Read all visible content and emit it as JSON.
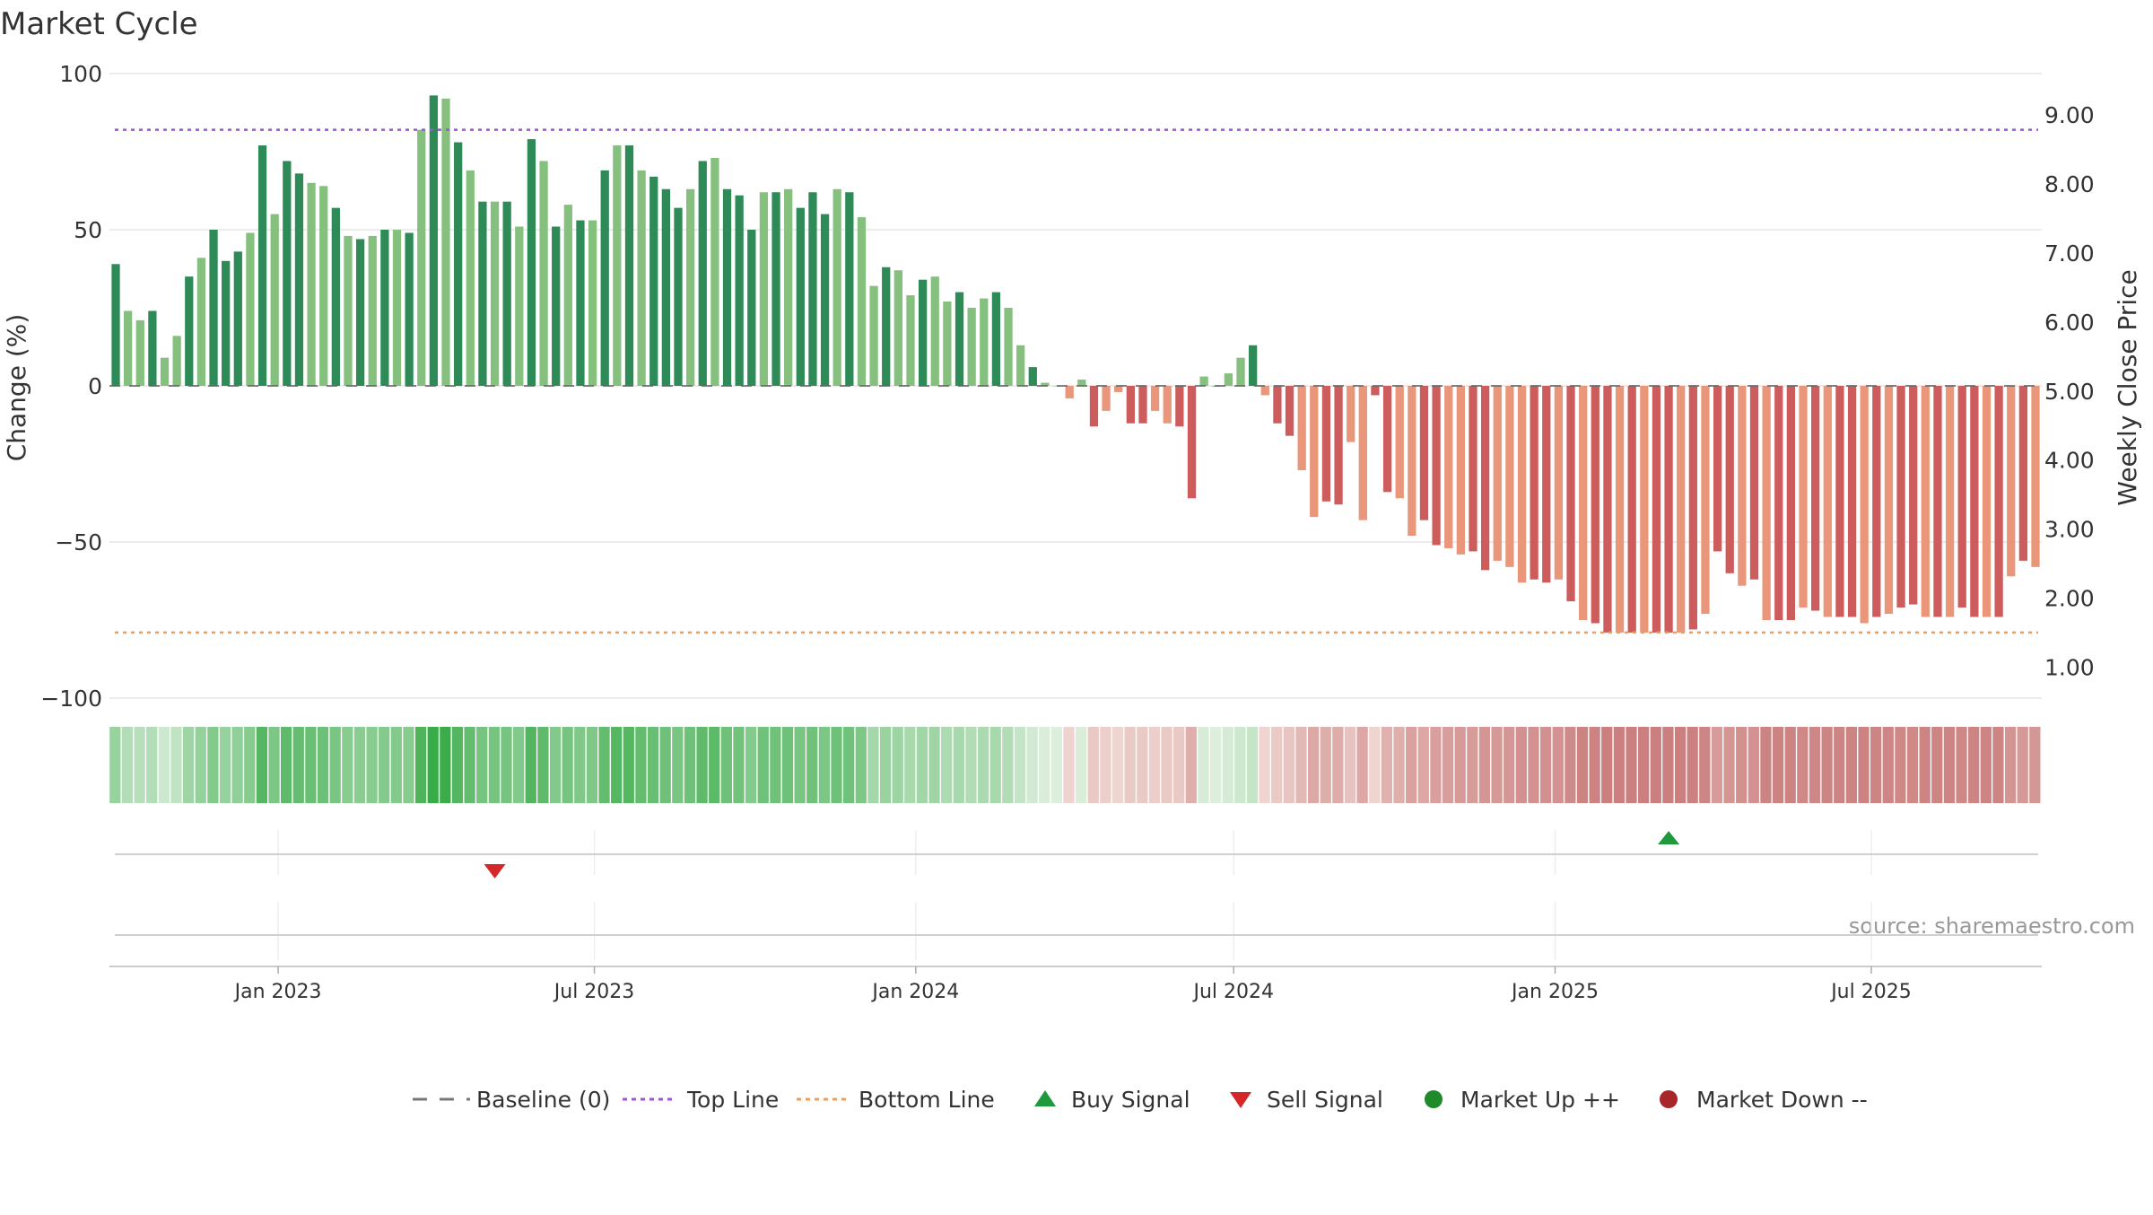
{
  "chart_data": {
    "type": "bar",
    "title": "Market Cycle",
    "ylabel_left": "Change (%)",
    "ylabel_right": "Weekly Close Price",
    "ylim": [
      -100,
      100
    ],
    "y_ticks": [
      100,
      50,
      0,
      -50,
      -100
    ],
    "y_tick_labels": [
      "100",
      "50",
      "0",
      "−50",
      "−100"
    ],
    "y2lim": [
      0.55,
      9.6
    ],
    "y2_ticks": [
      9,
      8,
      7,
      6,
      5,
      4,
      3,
      2,
      1
    ],
    "y2_tick_labels": [
      "9.00",
      "8.00",
      "7.00",
      "6.00",
      "5.00",
      "4.00",
      "3.00",
      "2.00",
      "1.00"
    ],
    "start_date": "2022-09-30",
    "interval_days": 7,
    "x_ticks": [
      {
        "date": "2023-01-01",
        "label": "Jan 2023"
      },
      {
        "date": "2023-07-01",
        "label": "Jul 2023"
      },
      {
        "date": "2024-01-01",
        "label": "Jan 2024"
      },
      {
        "date": "2024-07-01",
        "label": "Jul 2024"
      },
      {
        "date": "2025-01-01",
        "label": "Jan 2025"
      },
      {
        "date": "2025-07-01",
        "label": "Jul 2025"
      }
    ],
    "top_line": 82,
    "bottom_line": -79,
    "baseline": 0,
    "values": [
      39,
      24,
      21,
      24,
      9,
      16,
      35,
      41,
      50,
      40,
      43,
      49,
      77,
      55,
      72,
      68,
      65,
      64,
      57,
      48,
      47,
      48,
      50,
      50,
      49,
      82,
      93,
      92,
      78,
      69,
      59,
      59,
      59,
      51,
      79,
      72,
      51,
      58,
      53,
      53,
      69,
      77,
      77,
      69,
      67,
      63,
      57,
      63,
      72,
      73,
      63,
      61,
      50,
      62,
      62,
      63,
      57,
      62,
      55,
      63,
      62,
      54,
      32,
      38,
      37,
      29,
      34,
      35,
      27,
      30,
      25,
      28,
      30,
      25,
      13,
      6,
      1,
      0,
      -4,
      2,
      -13,
      -8,
      -2,
      -12,
      -12,
      -8,
      -12,
      -13,
      -36,
      3,
      0,
      4,
      9,
      13,
      -3,
      -12,
      -16,
      -27,
      -42,
      -37,
      -38,
      -18,
      -43,
      -3,
      -34,
      -36,
      -48,
      -43,
      -51,
      -52,
      -54,
      -53,
      -59,
      -56,
      -58,
      -63,
      -62,
      -63,
      -62,
      -69,
      -75,
      -76,
      -79,
      -79,
      -79,
      -79,
      -79,
      -79,
      -79,
      -78,
      -73,
      -53,
      -60,
      -64,
      -62,
      -75,
      -75,
      -75,
      -71,
      -72,
      -74,
      -74,
      -74,
      -76,
      -74,
      -73,
      -71,
      -70,
      -74,
      -74,
      -74,
      -71,
      -74,
      -74,
      -74,
      -61,
      -56,
      -58
    ],
    "price_series": {
      "name": "Weekly Close Price",
      "values": []
    },
    "signals": [
      {
        "type": "sell",
        "date": "2023-05-05",
        "row": "signals"
      },
      {
        "type": "buy",
        "date": "2025-03-07",
        "row": "signals"
      }
    ],
    "legend": {
      "placement": "bottom-center",
      "items": [
        {
          "label": "Baseline (0)",
          "symbol": "dash",
          "color": "#777777"
        },
        {
          "label": "Top Line",
          "symbol": "dotted-line",
          "color": "#9b59d0"
        },
        {
          "label": "Bottom Line",
          "symbol": "dotted-line",
          "color": "#e8a060"
        },
        {
          "label": "Buy Signal",
          "symbol": "triangle-up",
          "color": "#1e9a3c"
        },
        {
          "label": "Sell Signal",
          "symbol": "triangle-down",
          "color": "#d62728"
        },
        {
          "label": "Market Up ++",
          "symbol": "circle",
          "color": "#1e8a2a"
        },
        {
          "label": "Market Down --",
          "symbol": "circle",
          "color": "#a8262a"
        }
      ]
    },
    "source": "source: sharemaestro.com",
    "grid": true,
    "colors": {
      "up_dark": "#2e8b57",
      "up_light": "#86c07e",
      "down_dark": "#cd5c5c",
      "down_light": "#e9967a",
      "top_line": "#9b59d0",
      "bottom_line": "#e8a060"
    }
  }
}
